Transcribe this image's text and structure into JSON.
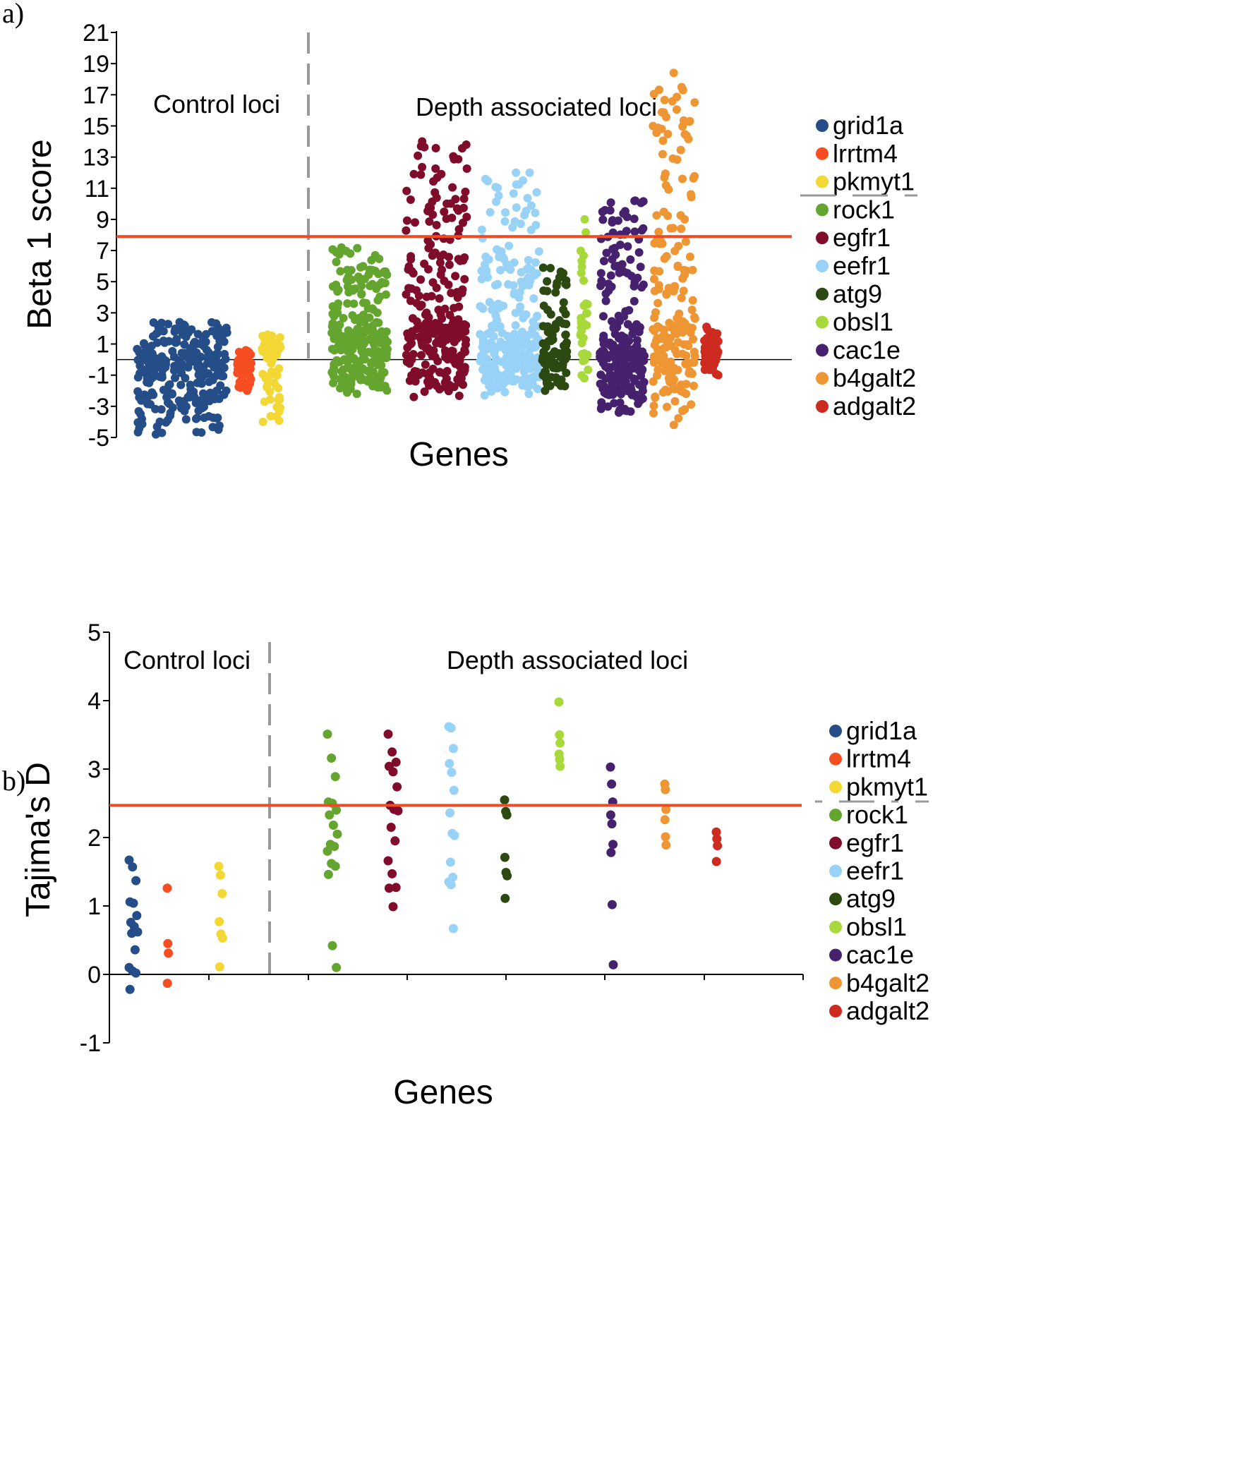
{
  "figure": {
    "panel_a_label": "a)",
    "panel_b_label": "b)"
  },
  "chart_data": [
    {
      "type": "scatter",
      "panel": "a)",
      "ylabel": "Beta 1 score",
      "xlabel": "Genes",
      "ylim": [
        -5,
        21
      ],
      "yticks": [
        21,
        19,
        17,
        15,
        13,
        11,
        9,
        7,
        5,
        3,
        1,
        -1,
        -3,
        -5
      ],
      "threshold": 7.9,
      "threshold_color": "#f04a24",
      "divider_label_left": "Control loci",
      "divider_label_right": "Depth associated loci",
      "legend_position": "right",
      "series": [
        {
          "name": "grid1a",
          "color": "#254d87",
          "count": 420,
          "min": -4.8,
          "max": 2.4,
          "median": -0.5
        },
        {
          "name": "lrrtm4",
          "color": "#f74d22",
          "count": 45,
          "min": -2.0,
          "max": 0.6,
          "median": -0.3
        },
        {
          "name": "pkmyt1",
          "color": "#f3d835",
          "count": 70,
          "min": -4.0,
          "max": 1.6,
          "median": 0.3
        },
        {
          "name": "rock1",
          "color": "#64a52f",
          "count": 260,
          "min": -2.2,
          "max": 7.2,
          "median": 1.5
        },
        {
          "name": "egfr1",
          "color": "#7e0c2a",
          "count": 420,
          "min": -2.4,
          "max": 14.0,
          "median": 1.8
        },
        {
          "name": "eefr1",
          "color": "#99d2f7",
          "count": 300,
          "min": -2.3,
          "max": 12.0,
          "median": 0.9
        },
        {
          "name": "atg9",
          "color": "#2c4912",
          "count": 90,
          "min": -2.0,
          "max": 5.9,
          "median": 0.3
        },
        {
          "name": "obsl1",
          "color": "#a7d93a",
          "count": 30,
          "min": -1.2,
          "max": 9.0,
          "median": 2.0
        },
        {
          "name": "cac1e",
          "color": "#46226e",
          "count": 230,
          "min": -3.4,
          "max": 10.2,
          "median": 0.5
        },
        {
          "name": "b4galt2",
          "color": "#ee9633",
          "count": 200,
          "min": -4.2,
          "max": 18.4,
          "median": 2.0
        },
        {
          "name": "adgalt2",
          "color": "#cd2a20",
          "count": 60,
          "min": -1.0,
          "max": 2.1,
          "median": 0.5
        }
      ]
    },
    {
      "type": "scatter",
      "panel": "b)",
      "ylabel": "Tajima's D",
      "xlabel": "Genes",
      "ylim": [
        -1,
        5
      ],
      "yticks": [
        5,
        4,
        3,
        2,
        1,
        0,
        -1
      ],
      "threshold": 2.47,
      "threshold_color": "#f04a24",
      "divider_label_left": "Control loci",
      "divider_label_right": "Depth associated loci",
      "legend_position": "right",
      "series": [
        {
          "name": "grid1a",
          "color": "#254d87",
          "values": [
            1.67,
            1.57,
            1.37,
            1.06,
            1.04,
            0.86,
            0.76,
            0.7,
            0.62,
            0.6,
            0.36,
            0.1,
            0.05,
            0.02,
            -0.22
          ]
        },
        {
          "name": "lrrtm4",
          "color": "#f74d22",
          "values": [
            1.26,
            0.45,
            0.31,
            -0.13
          ]
        },
        {
          "name": "pkmyt1",
          "color": "#f3d835",
          "values": [
            1.58,
            1.45,
            1.18,
            0.77,
            0.59,
            0.53,
            0.11
          ]
        },
        {
          "name": "rock1",
          "color": "#64a52f",
          "values": [
            3.51,
            3.16,
            2.89,
            2.52,
            2.5,
            2.4,
            2.33,
            2.18,
            2.05,
            1.9,
            1.87,
            1.8,
            1.62,
            1.58,
            1.46,
            0.42,
            0.1
          ]
        },
        {
          "name": "egfr1",
          "color": "#7e0c2a",
          "values": [
            3.51,
            3.25,
            3.1,
            3.04,
            2.96,
            2.74,
            2.47,
            2.41,
            2.39,
            2.15,
            1.95,
            1.66,
            1.47,
            1.27,
            1.26,
            0.99
          ]
        },
        {
          "name": "eefr1",
          "color": "#99d2f7",
          "values": [
            3.62,
            3.6,
            3.3,
            3.08,
            2.95,
            2.69,
            2.36,
            2.06,
            2.03,
            1.64,
            1.42,
            1.35,
            1.31,
            0.67
          ]
        },
        {
          "name": "atg9",
          "color": "#2c4912",
          "values": [
            2.55,
            2.38,
            2.33,
            1.71,
            1.49,
            1.44,
            1.11
          ]
        },
        {
          "name": "obsl1",
          "color": "#a7d93a",
          "values": [
            3.98,
            3.5,
            3.38,
            3.22,
            3.14,
            3.04
          ]
        },
        {
          "name": "cac1e",
          "color": "#46226e",
          "values": [
            3.03,
            2.78,
            2.52,
            2.33,
            2.2,
            1.9,
            1.78,
            1.02,
            0.14
          ]
        },
        {
          "name": "b4galt2",
          "color": "#ee9633",
          "values": [
            2.78,
            2.7,
            2.41,
            2.26,
            2.01,
            1.89
          ]
        },
        {
          "name": "adgalt2",
          "color": "#cd2a20",
          "values": [
            2.08,
            1.98,
            1.88,
            1.65
          ]
        }
      ]
    }
  ]
}
